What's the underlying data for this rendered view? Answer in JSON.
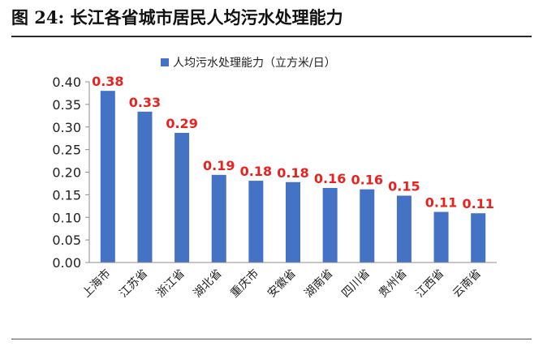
{
  "figure": {
    "title": "图 24:  长江各省城市居民人均污水处理能力"
  },
  "chart_data": {
    "type": "bar",
    "categories": [
      "上海市",
      "江苏省",
      "浙江省",
      "湖北省",
      "重庆市",
      "安徽省",
      "湖南省",
      "四川省",
      "贵州省",
      "江西省",
      "云南省"
    ],
    "series": [
      {
        "name": "人均污水处理能力（立方米/日）",
        "values": [
          0.38,
          0.334,
          0.287,
          0.194,
          0.181,
          0.178,
          0.165,
          0.162,
          0.148,
          0.112,
          0.109
        ],
        "data_labels": [
          "0.38",
          "0.33",
          "0.29",
          "0.19",
          "0.18",
          "0.18",
          "0.16",
          "0.16",
          "0.15",
          "0.11",
          "0.11"
        ]
      }
    ],
    "ylim": [
      0,
      0.4
    ],
    "yticks": [
      "0.00",
      "0.05",
      "0.10",
      "0.15",
      "0.20",
      "0.25",
      "0.30",
      "0.35",
      "0.40"
    ],
    "ytick_values": [
      0,
      0.05,
      0.1,
      0.15,
      0.2,
      0.25,
      0.3,
      0.35,
      0.4
    ],
    "legend_position": "top-center",
    "grid": false,
    "bar_color": "#4472C4",
    "label_color": "#E8231F"
  }
}
